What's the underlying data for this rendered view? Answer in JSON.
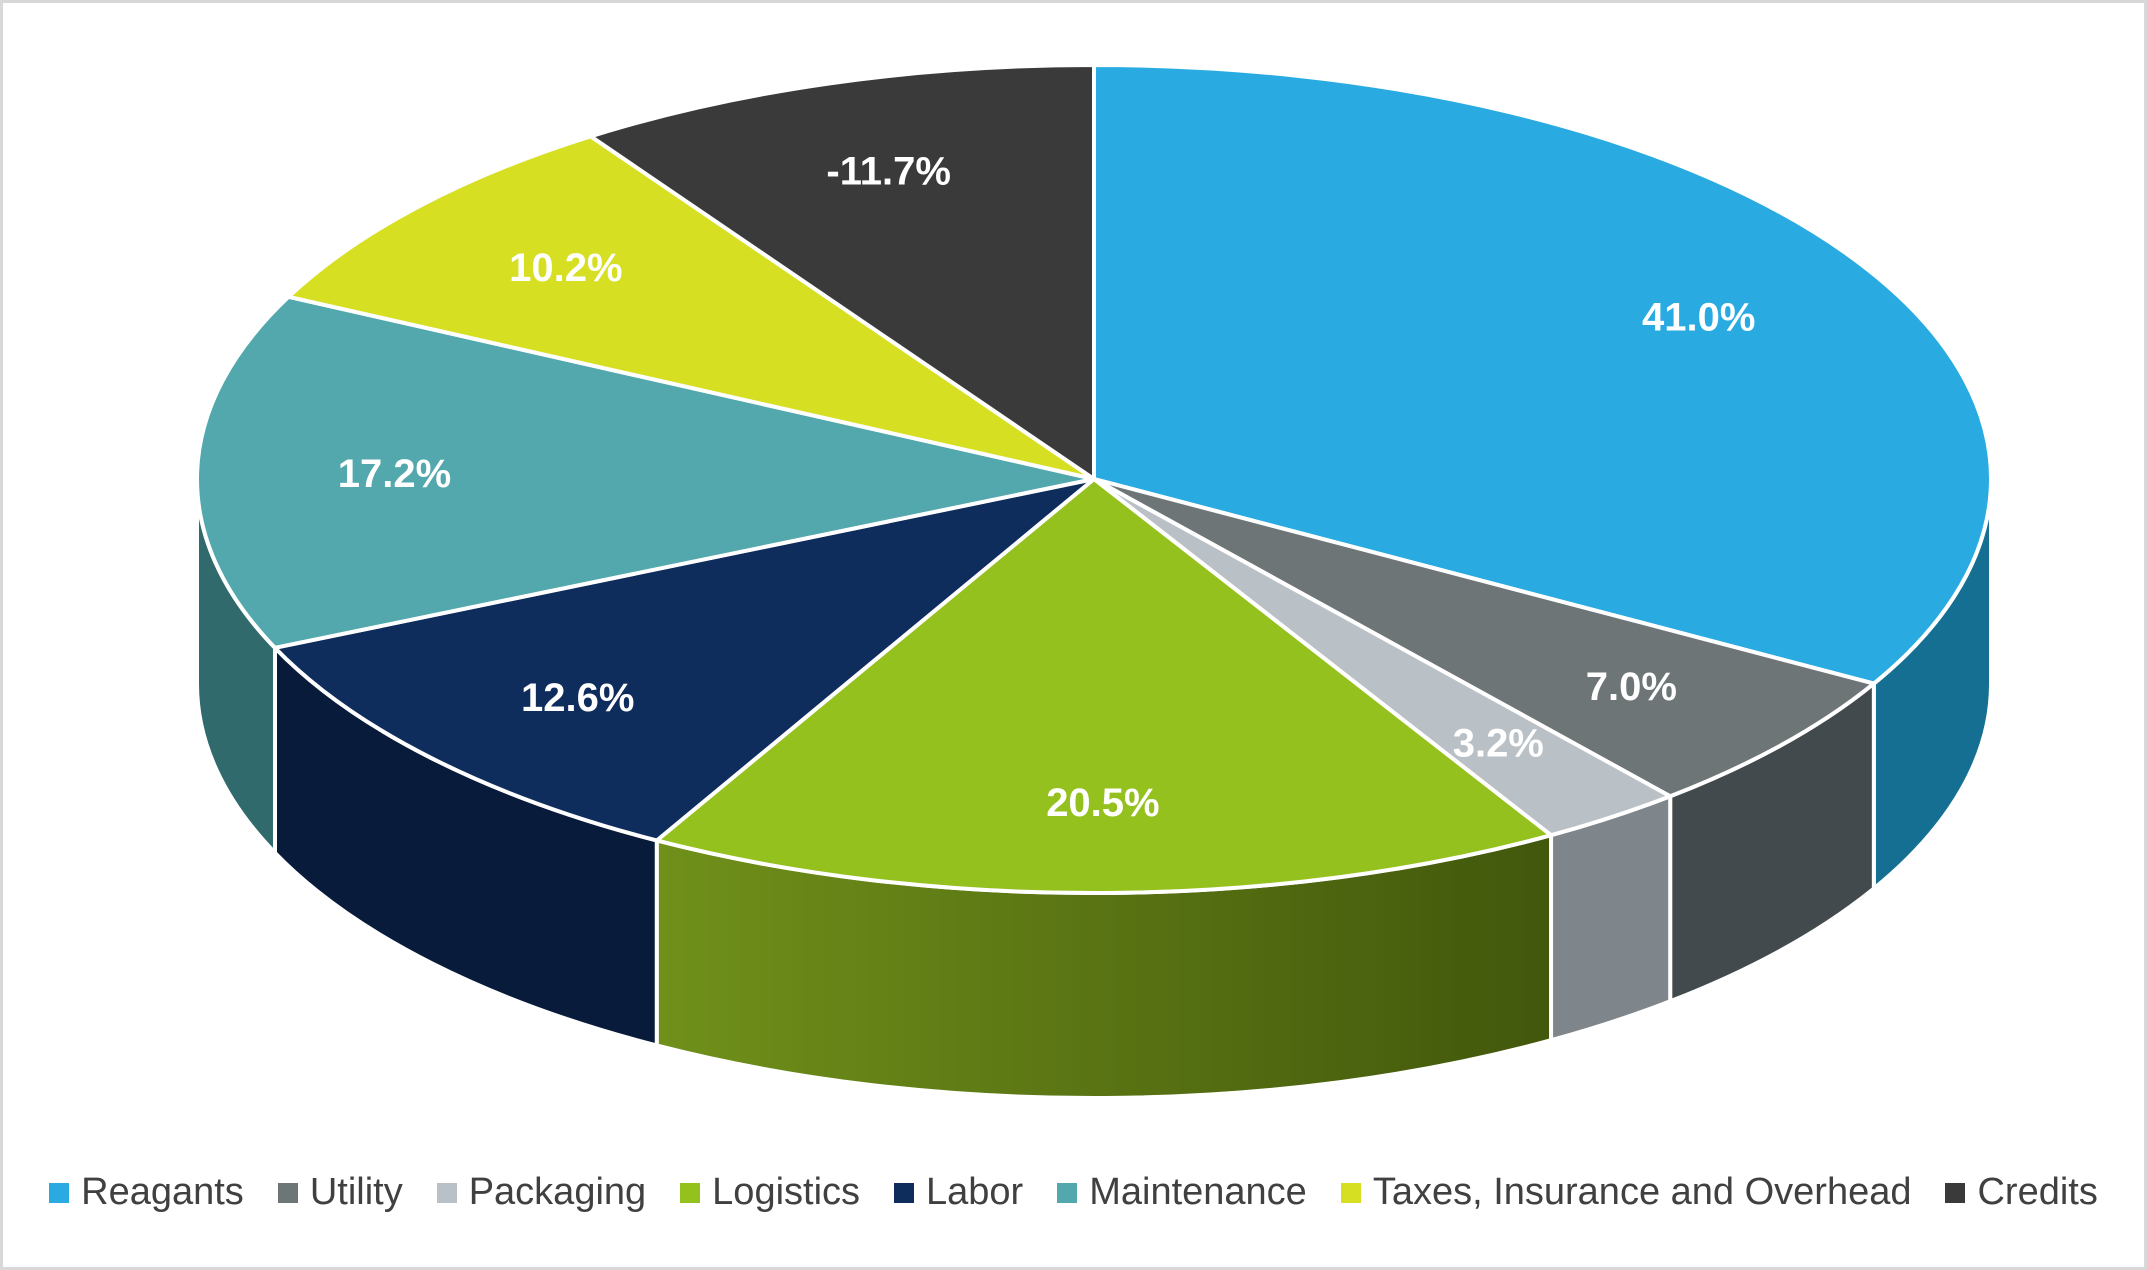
{
  "chart_data": {
    "type": "pie",
    "style": "3d-pie",
    "title": "",
    "legend_position": "bottom",
    "start_angle_deg": 0,
    "direction": "clockwise",
    "label_color": "#FFFFFF",
    "legend_text_color": "#404040",
    "background": "#FFFFFF",
    "border_color": "#D8D8D8",
    "series": [
      {
        "label": "Reagants",
        "value": 41.0,
        "display": "41.0%",
        "color": "#29ABE2",
        "side_color": "#156F92"
      },
      {
        "label": "Utility",
        "value": 7.0,
        "display": "7.0%",
        "color": "#6E7577",
        "side_color": "#434A4D"
      },
      {
        "label": "Packaging",
        "value": 3.2,
        "display": "3.2%",
        "color": "#B9C0C6",
        "side_color": "#7E858B"
      },
      {
        "label": "Logistics",
        "value": 20.5,
        "display": "20.5%",
        "color": "#95C11F",
        "side_color": "#57730F",
        "side_gradient": [
          "#70901A",
          "#42570C"
        ]
      },
      {
        "label": "Labor",
        "value": 12.6,
        "display": "12.6%",
        "color": "#0E2D5D",
        "side_color": "#081B3A"
      },
      {
        "label": "Maintenance",
        "value": 17.2,
        "display": "17.2%",
        "color": "#52A8AC",
        "side_color": "#316A6D"
      },
      {
        "label": "Taxes, Insurance and Overhead",
        "value": 10.2,
        "display": "10.2%",
        "color": "#D7DF23",
        "side_color": "#8F9414"
      },
      {
        "label": "Credits",
        "value": -11.7,
        "display": "-11.7%",
        "color": "#3A3A3A",
        "side_color": "#222222"
      }
    ]
  }
}
